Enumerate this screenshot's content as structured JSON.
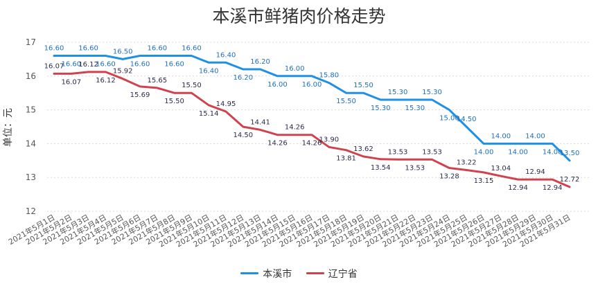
{
  "chart_data": {
    "type": "line",
    "title": "本溪市鲜猪肉价格走势",
    "ylabel": "单位：元",
    "xlabel": "",
    "ylim": [
      12,
      17
    ],
    "yticks": [
      12,
      13,
      14,
      15,
      16,
      17
    ],
    "grid": true,
    "legend_position": "bottom-center",
    "categories": [
      "2021年5月1日",
      "2021年5月2日",
      "2021年5月3日",
      "2021年5月4日",
      "2021年5月5日",
      "2021年5月6日",
      "2021年5月7日",
      "2021年5月8日",
      "2021年5月9日",
      "2021年5月10日",
      "2021年5月11日",
      "2021年5月12日",
      "2021年5月13日",
      "2021年5月14日",
      "2021年5月15日",
      "2021年5月16日",
      "2021年5月17日",
      "2021年5月18日",
      "2021年5月19日",
      "2021年5月20日",
      "2021年5月21日",
      "2021年5月22日",
      "2021年5月23日",
      "2021年5月24日",
      "2021年5月25日",
      "2021年5月26日",
      "2021年5月27日",
      "2021年5月28日",
      "2021年5月29日",
      "2021年5月30日",
      "2021年5月31日"
    ],
    "series": [
      {
        "name": "本溪市",
        "color": "#1e90e6",
        "values": [
          16.6,
          16.6,
          16.6,
          16.6,
          16.5,
          16.6,
          16.6,
          16.6,
          16.6,
          16.4,
          16.4,
          16.2,
          16.2,
          16.0,
          16.0,
          16.0,
          15.8,
          15.5,
          15.5,
          15.3,
          15.3,
          15.3,
          15.3,
          15.0,
          14.5,
          14.0,
          14.0,
          14.0,
          14.0,
          14.0,
          13.5
        ],
        "labels": [
          "16.60",
          "16.60",
          "16.60",
          "16.60",
          "16.50",
          "16.60",
          "16.60",
          "16.60",
          "16.60",
          "16.40",
          "16.40",
          "16.20",
          "16.20",
          "16.00",
          "16.00",
          "16.00",
          "15.80",
          "15.50",
          "15.50",
          "15.30",
          "15.30",
          "15.30",
          "15.30",
          "15.00",
          "14.50",
          "14.00",
          "14.00",
          "14.00",
          "14.00",
          "14.00",
          "13.50"
        ]
      },
      {
        "name": "辽宁省",
        "color": "#d0424e",
        "values": [
          16.07,
          16.07,
          16.12,
          16.12,
          15.92,
          15.69,
          15.65,
          15.5,
          15.5,
          15.14,
          14.95,
          14.5,
          14.41,
          14.26,
          14.26,
          14.26,
          13.9,
          13.81,
          13.62,
          13.54,
          13.53,
          13.53,
          13.53,
          13.28,
          13.22,
          13.15,
          13.04,
          12.94,
          12.94,
          12.94,
          12.72
        ],
        "labels": [
          "16.07",
          "16.07",
          "16.12",
          "16.12",
          "15.92",
          "15.69",
          "15.65",
          "15.50",
          "15.50",
          "15.14",
          "14.95",
          "14.50",
          "14.41",
          "14.26",
          "14.26",
          "14.26",
          "13.90",
          "13.81",
          "13.62",
          "13.54",
          "13.53",
          "13.53",
          "13.53",
          "13.28",
          "13.22",
          "13.15",
          "13.04",
          "12.94",
          "12.94",
          "12.94",
          "12.72"
        ]
      }
    ]
  }
}
